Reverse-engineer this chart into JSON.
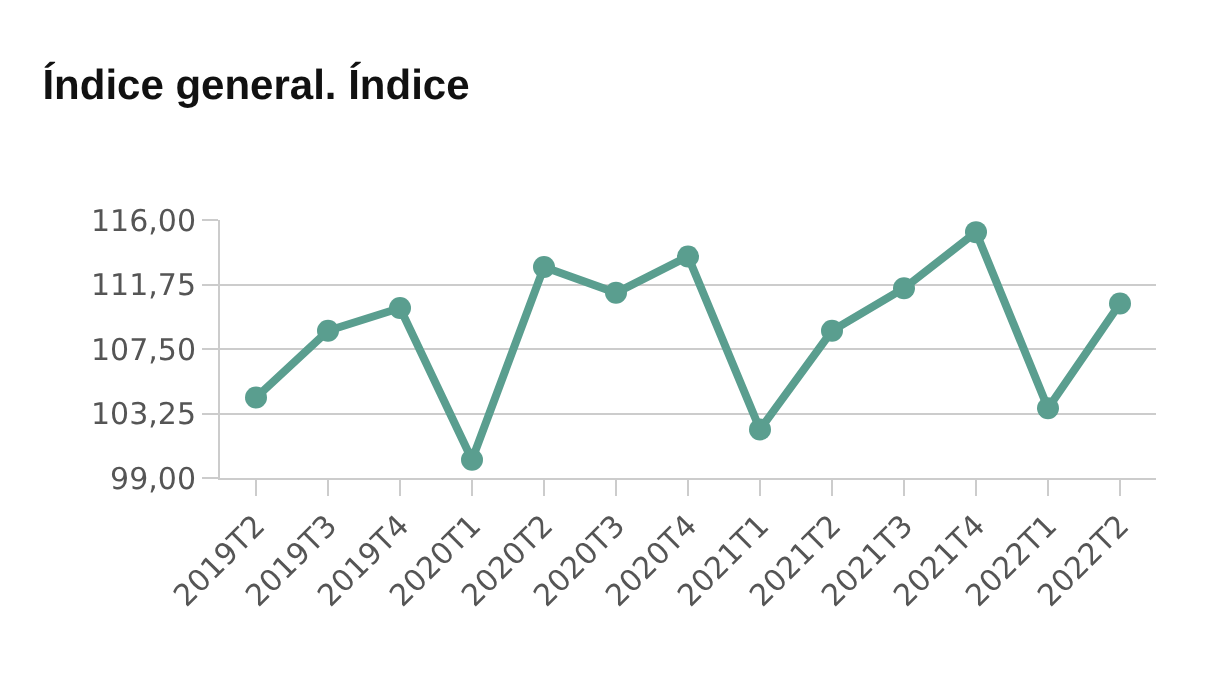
{
  "chart_data": {
    "type": "line",
    "title": "Índice general. Índice",
    "categories": [
      "2019T2",
      "2019T3",
      "2019T4",
      "2020T1",
      "2020T2",
      "2020T3",
      "2020T4",
      "2021T1",
      "2021T2",
      "2021T3",
      "2021T4",
      "2022T1",
      "2022T2"
    ],
    "series": [
      {
        "color": "#5a9e8f",
        "values": [
          104.3,
          108.7,
          110.2,
          100.2,
          112.9,
          111.2,
          113.6,
          102.2,
          108.7,
          111.5,
          115.2,
          103.6,
          110.5
        ]
      }
    ],
    "ylim": [
      99,
      116
    ],
    "yticks": [
      {
        "value": 99,
        "label": "99,00"
      },
      {
        "value": 103.25,
        "label": "103,25"
      },
      {
        "value": 107.5,
        "label": "107,50"
      },
      {
        "value": 111.75,
        "label": "111,75"
      },
      {
        "value": 116,
        "label": "116,00"
      }
    ],
    "grid": "y",
    "marker": "circle",
    "line_style": "solid"
  }
}
